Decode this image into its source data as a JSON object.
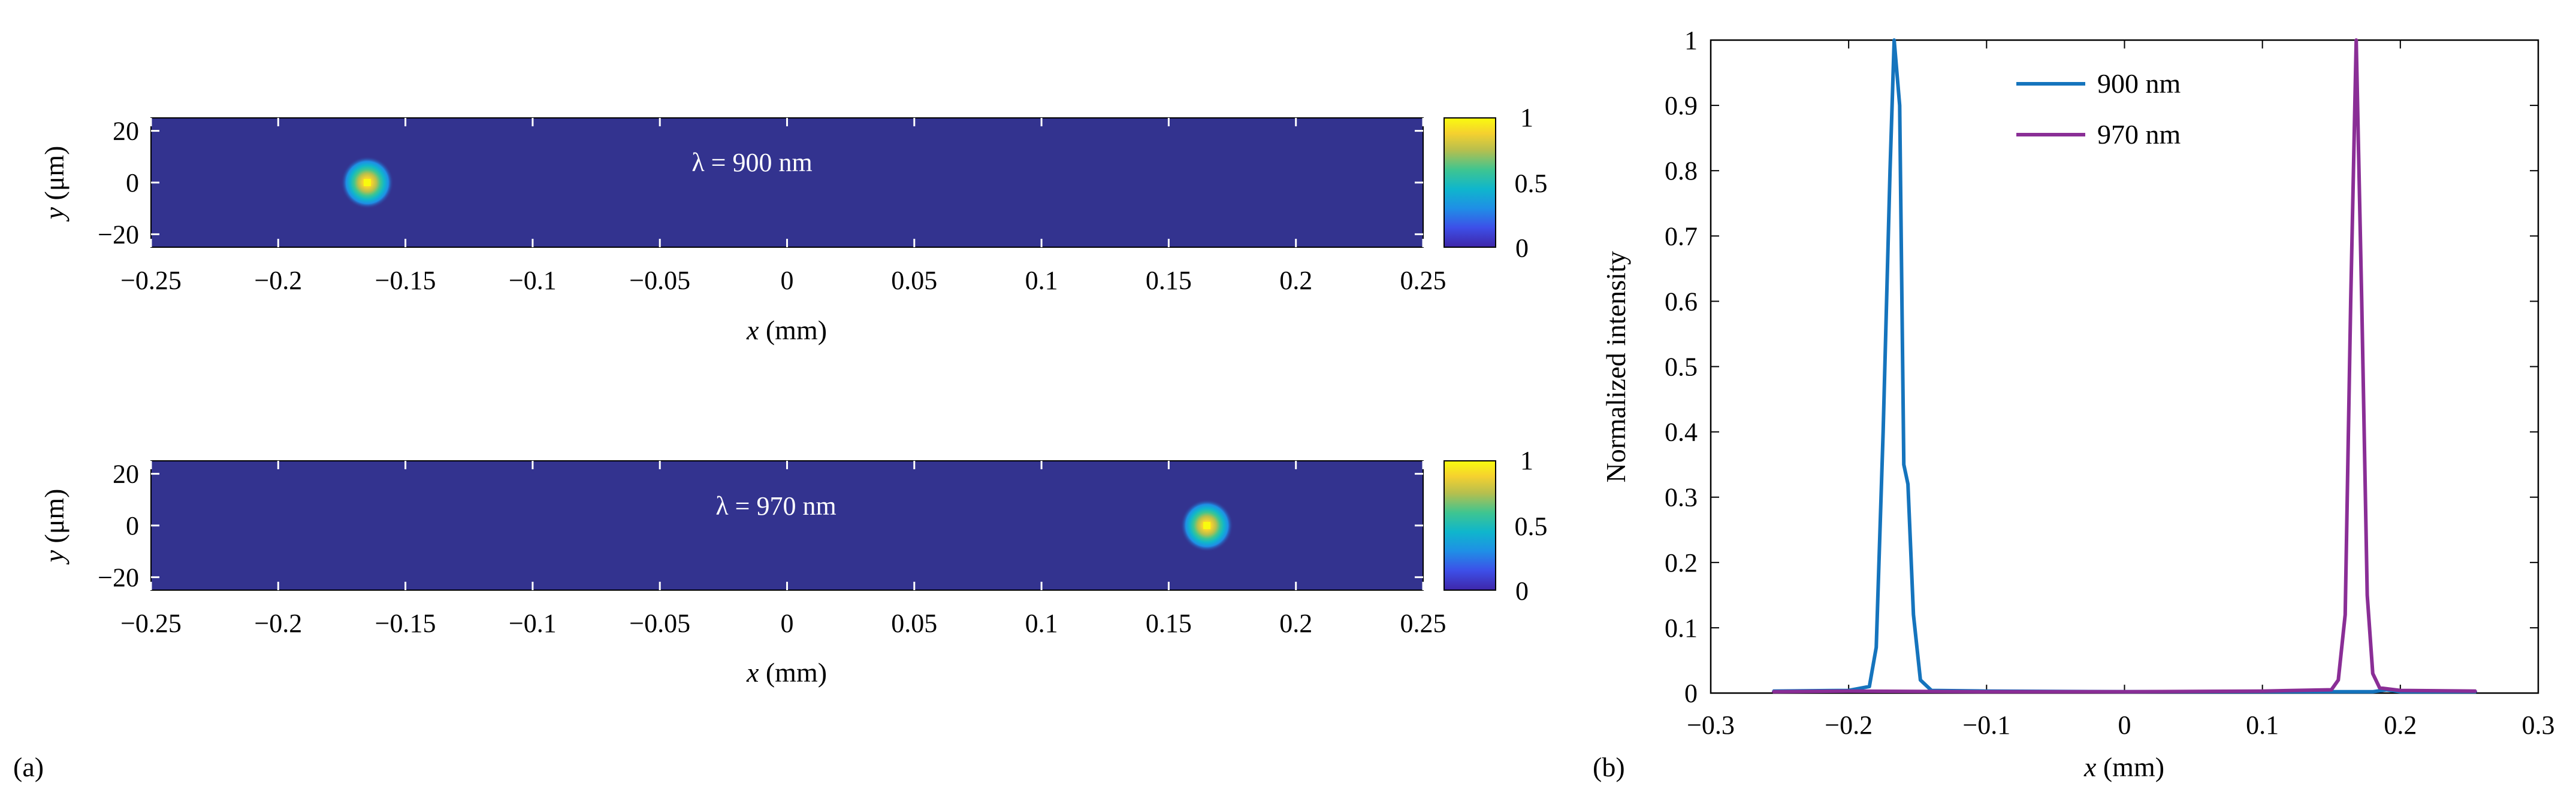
{
  "panel_labels": {
    "a": "(a)",
    "b": "(b)"
  },
  "colors": {
    "heatmap_background": "#33338F",
    "series_900": "#1574BD",
    "series_970": "#8A2E96",
    "colormap": [
      "#3E26A8",
      "#3D4FE8",
      "#1F8FE6",
      "#0FB6CC",
      "#3FC590",
      "#B6BF4E",
      "#F5D12F",
      "#F9FB0E"
    ]
  },
  "chart_data": [
    {
      "type": "heatmap",
      "label": "λ = 900 nm",
      "xlabel": "x (mm)",
      "ylabel": "y (μm)",
      "xlim": [
        -0.25,
        0.25
      ],
      "ylim": [
        -25,
        25
      ],
      "xticks": [
        "−0.25",
        "−0.2",
        "−0.15",
        "−0.1",
        "−0.05",
        "0",
        "0.05",
        "0.1",
        "0.15",
        "0.2",
        "0.25"
      ],
      "yticks": [
        "20",
        "0",
        "−20"
      ],
      "colorbar": {
        "range": [
          0,
          1
        ],
        "ticks": [
          "1",
          "0.5",
          "0"
        ]
      },
      "spot": {
        "x": -0.165,
        "y": 0,
        "peak": 1
      },
      "grid": false
    },
    {
      "type": "heatmap",
      "label": "λ = 970 nm",
      "xlabel": "x (mm)",
      "ylabel": "y (μm)",
      "xlim": [
        -0.25,
        0.25
      ],
      "ylim": [
        -25,
        25
      ],
      "xticks": [
        "−0.25",
        "−0.2",
        "−0.15",
        "−0.1",
        "−0.05",
        "0",
        "0.05",
        "0.1",
        "0.15",
        "0.2",
        "0.25"
      ],
      "yticks": [
        "20",
        "0",
        "−20"
      ],
      "colorbar": {
        "range": [
          0,
          1
        ],
        "ticks": [
          "1",
          "0.5",
          "0"
        ]
      },
      "spot": {
        "x": 0.165,
        "y": 0,
        "peak": 1
      },
      "grid": false
    },
    {
      "type": "line",
      "xlabel": "x (mm)",
      "ylabel": "Normalized intensity",
      "xlim": [
        -0.3,
        0.3
      ],
      "ylim": [
        0,
        1
      ],
      "xticks": [
        "−0.3",
        "−0.2",
        "−0.1",
        "0",
        "0.1",
        "0.2",
        "0.3"
      ],
      "yticks": [
        "0",
        "0.1",
        "0.2",
        "0.3",
        "0.4",
        "0.5",
        "0.6",
        "0.7",
        "0.8",
        "0.9",
        "1"
      ],
      "legend_position": "top-center",
      "grid": false,
      "series": [
        {
          "name": "900 nm",
          "color": "#1574BD",
          "points": [
            [
              -0.255,
              0.003
            ],
            [
              -0.2,
              0.004
            ],
            [
              -0.185,
              0.01
            ],
            [
              -0.18,
              0.07
            ],
            [
              -0.175,
              0.4
            ],
            [
              -0.17,
              0.8
            ],
            [
              -0.167,
              1.0
            ],
            [
              -0.163,
              0.9
            ],
            [
              -0.16,
              0.35
            ],
            [
              -0.157,
              0.32
            ],
            [
              -0.153,
              0.12
            ],
            [
              -0.148,
              0.02
            ],
            [
              -0.14,
              0.004
            ],
            [
              -0.1,
              0.003
            ],
            [
              0,
              0.002
            ],
            [
              0.1,
              0.002
            ],
            [
              0.18,
              0.002
            ],
            [
              0.19,
              0.005
            ],
            [
              0.2,
              0.002
            ],
            [
              0.255,
              0.002
            ]
          ]
        },
        {
          "name": "970 nm",
          "color": "#8A2E96",
          "points": [
            [
              -0.255,
              0.002
            ],
            [
              -0.2,
              0.003
            ],
            [
              -0.1,
              0.002
            ],
            [
              0,
              0.002
            ],
            [
              0.1,
              0.003
            ],
            [
              0.15,
              0.005
            ],
            [
              0.155,
              0.02
            ],
            [
              0.16,
              0.12
            ],
            [
              0.164,
              0.6
            ],
            [
              0.168,
              1.0
            ],
            [
              0.172,
              0.6
            ],
            [
              0.176,
              0.15
            ],
            [
              0.18,
              0.03
            ],
            [
              0.185,
              0.008
            ],
            [
              0.2,
              0.004
            ],
            [
              0.255,
              0.003
            ]
          ]
        }
      ]
    }
  ]
}
